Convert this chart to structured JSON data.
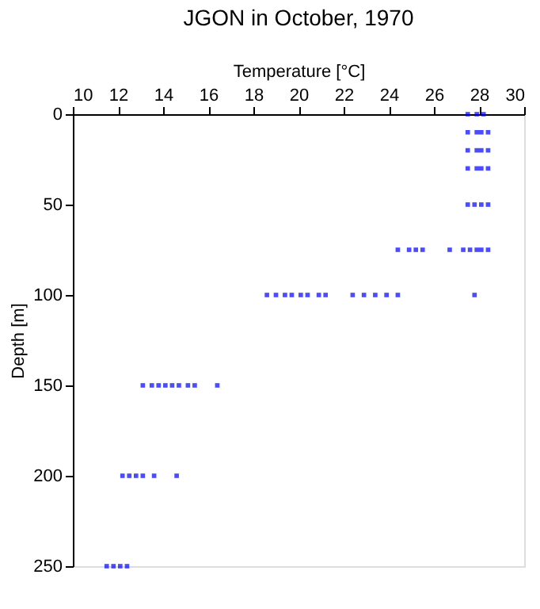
{
  "chart_data": {
    "type": "scatter",
    "title": "JGON in October, 1970",
    "xlabel": "Temperature [°C]",
    "ylabel": "Depth [m]",
    "xlim": [
      10,
      30
    ],
    "xticks": [
      10,
      12,
      14,
      16,
      18,
      20,
      22,
      24,
      26,
      28,
      30
    ],
    "ylim": [
      250,
      0
    ],
    "yticks": [
      0,
      50,
      100,
      150,
      200,
      250
    ],
    "grid": false,
    "legend": false,
    "marker": "square",
    "series": [
      {
        "color": "#0000ff",
        "x": [
          27.5,
          27.9,
          28.2,
          27.5,
          27.9,
          28.1,
          28.4,
          27.5,
          27.9,
          28.1,
          28.4,
          27.5,
          27.9,
          28.1,
          28.4,
          27.5,
          27.8,
          28.1,
          28.4,
          24.4,
          24.9,
          25.2,
          25.5,
          26.7,
          27.3,
          27.6,
          27.9,
          28.1,
          28.4,
          18.6,
          19.0,
          19.4,
          19.7,
          20.1,
          20.4,
          20.9,
          21.2,
          22.4,
          22.9,
          23.4,
          23.9,
          24.4,
          27.8,
          13.1,
          13.5,
          13.8,
          14.1,
          14.4,
          14.7,
          15.1,
          15.4,
          16.4,
          12.2,
          12.5,
          12.8,
          13.1,
          13.6,
          14.6,
          11.5,
          11.8,
          12.1,
          12.4
        ],
        "values": [
          0,
          0,
          0,
          10,
          10,
          10,
          10,
          20,
          20,
          20,
          20,
          30,
          30,
          30,
          30,
          50,
          50,
          50,
          50,
          75,
          75,
          75,
          75,
          75,
          75,
          75,
          75,
          75,
          75,
          100,
          100,
          100,
          100,
          100,
          100,
          100,
          100,
          100,
          100,
          100,
          100,
          100,
          100,
          150,
          150,
          150,
          150,
          150,
          150,
          150,
          150,
          150,
          200,
          200,
          200,
          200,
          200,
          200,
          250,
          250,
          250,
          250
        ]
      }
    ]
  }
}
